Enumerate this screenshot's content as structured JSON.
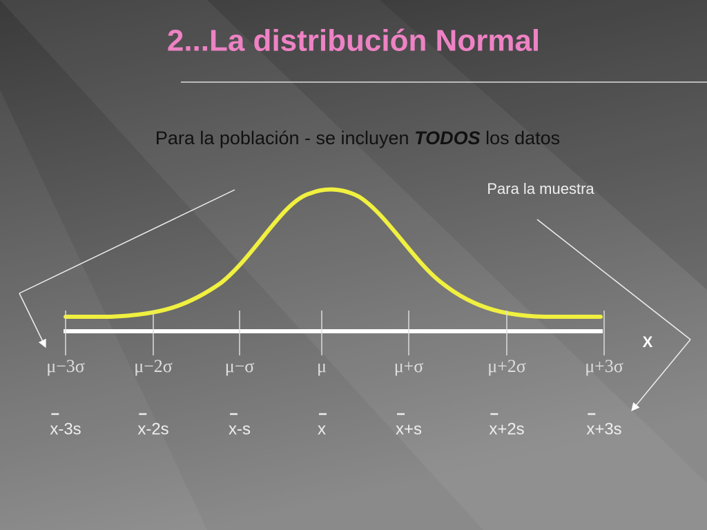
{
  "title": "2...La distribución Normal",
  "subtitle": {
    "before": "Para la población - se incluyen ",
    "emphasis": "TODOS",
    "after": " los datos"
  },
  "sample_note": "Para la muestra",
  "axis_label": "X",
  "population_labels": [
    "μ−3σ",
    "μ−2σ",
    "μ−σ",
    "μ",
    "μ+σ",
    "μ+2σ",
    "μ+3σ"
  ],
  "sample_labels": [
    "x-3s",
    "x-2s",
    "x-s",
    "x",
    "x+s",
    "x+2s",
    "x+3s"
  ]
}
